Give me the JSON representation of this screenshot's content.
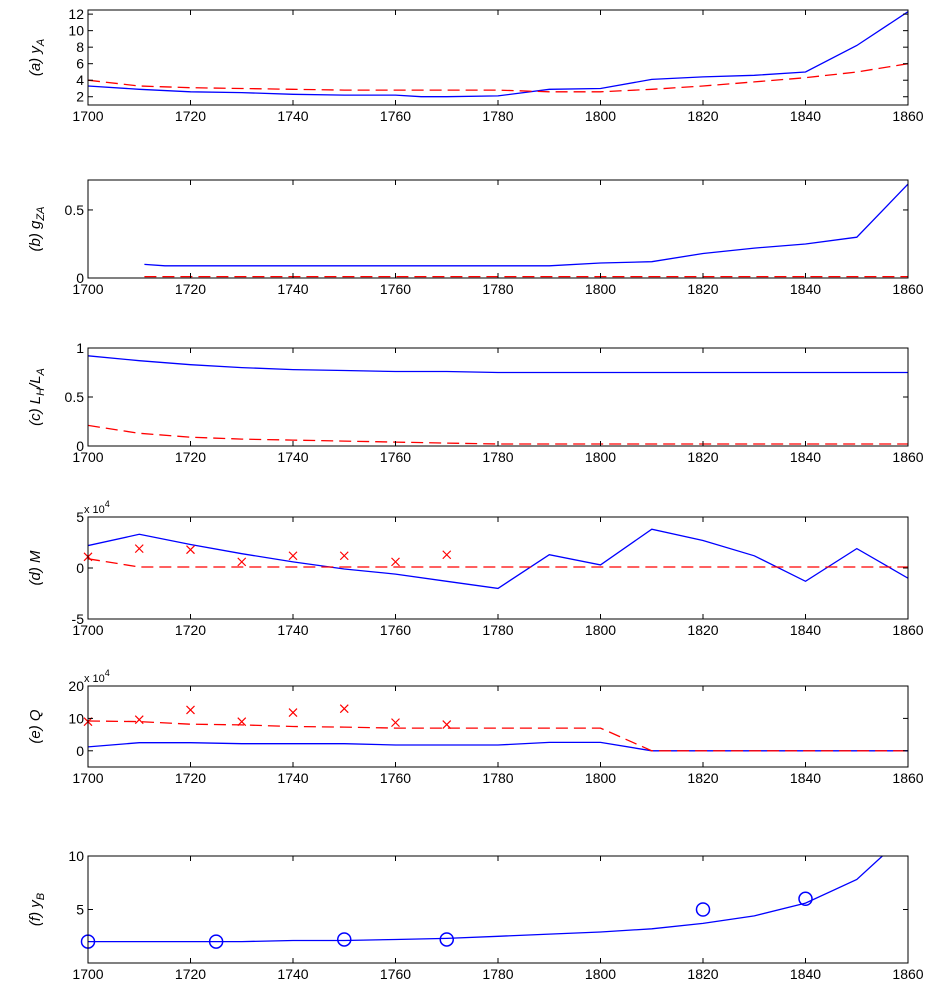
{
  "colors": {
    "model": "#0000ff",
    "alt": "#ff0000",
    "axes": "#000000"
  },
  "chart_data": [
    {
      "id": "a",
      "type": "line",
      "ylabel_prefix": "(a) ",
      "ylabel_main": "y",
      "ylabel_sub": "A",
      "xlim": [
        1700,
        1860
      ],
      "ylim": [
        1,
        12.5
      ],
      "xticks": [
        1700,
        1720,
        1740,
        1760,
        1780,
        1800,
        1820,
        1840,
        1860
      ],
      "yticks": [
        2,
        4,
        6,
        8,
        10,
        12
      ],
      "exponent": "",
      "series": [
        {
          "style": "solid-blue",
          "x": [
            1700,
            1710,
            1720,
            1730,
            1740,
            1750,
            1760,
            1765,
            1770,
            1780,
            1790,
            1800,
            1810,
            1820,
            1830,
            1840,
            1850,
            1860
          ],
          "y": [
            3.3,
            2.9,
            2.6,
            2.5,
            2.3,
            2.2,
            2.2,
            2.0,
            2.0,
            2.1,
            2.9,
            3.0,
            4.1,
            4.4,
            4.6,
            5.0,
            8.2,
            12.3
          ]
        },
        {
          "style": "dashed-red",
          "x": [
            1700,
            1710,
            1720,
            1730,
            1740,
            1750,
            1760,
            1770,
            1780,
            1790,
            1800,
            1810,
            1820,
            1830,
            1840,
            1850,
            1860
          ],
          "y": [
            4.0,
            3.3,
            3.1,
            3.0,
            2.9,
            2.8,
            2.8,
            2.8,
            2.8,
            2.6,
            2.6,
            2.9,
            3.3,
            3.8,
            4.3,
            5.0,
            6.0
          ]
        }
      ]
    },
    {
      "id": "b",
      "type": "line",
      "ylabel_prefix": "(b) ",
      "ylabel_main": "g",
      "ylabel_sub": "ZA",
      "xlim": [
        1700,
        1860
      ],
      "ylim": [
        0,
        0.72
      ],
      "xticks": [
        1700,
        1720,
        1740,
        1760,
        1780,
        1800,
        1820,
        1840,
        1860
      ],
      "yticks": [
        0,
        0.5
      ],
      "ytick_labels": [
        "0",
        "0.5"
      ],
      "exponent": "",
      "series": [
        {
          "style": "solid-blue",
          "x": [
            1711,
            1715,
            1720,
            1740,
            1760,
            1780,
            1790,
            1800,
            1810,
            1820,
            1830,
            1840,
            1850,
            1860
          ],
          "y": [
            0.1,
            0.09,
            0.09,
            0.09,
            0.09,
            0.09,
            0.09,
            0.11,
            0.12,
            0.18,
            0.22,
            0.25,
            0.3,
            0.69
          ]
        },
        {
          "style": "dashed-red",
          "x": [
            1711,
            1720,
            1740,
            1760,
            1780,
            1800,
            1820,
            1840,
            1860
          ],
          "y": [
            0.01,
            0.01,
            0.01,
            0.01,
            0.01,
            0.01,
            0.01,
            0.01,
            0.01
          ]
        }
      ]
    },
    {
      "id": "c",
      "type": "line",
      "ylabel_prefix": "(c) ",
      "ylabel_main": "L",
      "ylabel_sub": "H",
      "ylabel_main2": "/L",
      "ylabel_sub2": "A",
      "xlim": [
        1700,
        1860
      ],
      "ylim": [
        0,
        1
      ],
      "xticks": [
        1700,
        1720,
        1740,
        1760,
        1780,
        1800,
        1820,
        1840,
        1860
      ],
      "yticks": [
        0,
        0.5,
        1
      ],
      "ytick_labels": [
        "0",
        "0.5",
        "1"
      ],
      "exponent": "",
      "series": [
        {
          "style": "solid-blue",
          "x": [
            1700,
            1710,
            1720,
            1730,
            1740,
            1750,
            1760,
            1770,
            1780,
            1790,
            1800,
            1820,
            1840,
            1860
          ],
          "y": [
            0.92,
            0.87,
            0.83,
            0.8,
            0.78,
            0.77,
            0.76,
            0.76,
            0.75,
            0.75,
            0.75,
            0.75,
            0.75,
            0.75
          ]
        },
        {
          "style": "dashed-red",
          "x": [
            1700,
            1710,
            1720,
            1730,
            1740,
            1750,
            1760,
            1770,
            1780,
            1800,
            1820,
            1840,
            1860
          ],
          "y": [
            0.21,
            0.13,
            0.09,
            0.07,
            0.06,
            0.05,
            0.04,
            0.03,
            0.02,
            0.02,
            0.02,
            0.02,
            0.02
          ]
        }
      ]
    },
    {
      "id": "d",
      "type": "line",
      "ylabel_prefix": "(d) ",
      "ylabel_main": "M",
      "ylabel_sub": "",
      "xlim": [
        1700,
        1860
      ],
      "ylim": [
        -5,
        5
      ],
      "xticks": [
        1700,
        1720,
        1740,
        1760,
        1780,
        1800,
        1820,
        1840,
        1860
      ],
      "yticks": [
        -5,
        0,
        5
      ],
      "exponent": "x 10",
      "exponent_power": "4",
      "series": [
        {
          "style": "solid-blue",
          "x": [
            1700,
            1710,
            1720,
            1730,
            1740,
            1750,
            1760,
            1770,
            1780,
            1790,
            1800,
            1810,
            1820,
            1830,
            1840,
            1850,
            1860
          ],
          "y": [
            2.2,
            3.3,
            2.3,
            1.4,
            0.6,
            -0.1,
            -0.6,
            -1.3,
            -2.0,
            1.3,
            0.3,
            3.8,
            2.7,
            1.2,
            -1.3,
            1.9,
            -1.0
          ]
        },
        {
          "style": "dashed-red",
          "x": [
            1700,
            1710,
            1720,
            1740,
            1760,
            1780,
            1800,
            1820,
            1840,
            1860
          ],
          "y": [
            0.9,
            0.1,
            0.1,
            0.1,
            0.1,
            0.1,
            0.1,
            0.1,
            0.1,
            0.1
          ]
        },
        {
          "style": "cross-red",
          "x": [
            1700,
            1710,
            1720,
            1730,
            1740,
            1750,
            1760,
            1770
          ],
          "y": [
            1.1,
            1.9,
            1.8,
            0.6,
            1.2,
            1.2,
            0.6,
            1.3
          ]
        }
      ]
    },
    {
      "id": "e",
      "type": "line",
      "ylabel_prefix": "(e) ",
      "ylabel_main": "Q",
      "ylabel_sub": "",
      "xlim": [
        1700,
        1860
      ],
      "ylim": [
        -5,
        20
      ],
      "xticks": [
        1700,
        1720,
        1740,
        1760,
        1780,
        1800,
        1820,
        1840,
        1860
      ],
      "yticks": [
        0,
        10,
        20
      ],
      "exponent": "x 10",
      "exponent_power": "4",
      "series": [
        {
          "style": "solid-blue",
          "x": [
            1700,
            1710,
            1720,
            1730,
            1740,
            1750,
            1760,
            1770,
            1780,
            1790,
            1800,
            1810,
            1820,
            1840,
            1860
          ],
          "y": [
            1.2,
            2.5,
            2.5,
            2.2,
            2.2,
            2.2,
            1.8,
            1.8,
            1.8,
            2.6,
            2.6,
            0,
            0,
            0,
            0
          ]
        },
        {
          "style": "dashed-red",
          "x": [
            1700,
            1710,
            1720,
            1730,
            1740,
            1750,
            1760,
            1770,
            1780,
            1790,
            1800,
            1810,
            1820,
            1840,
            1860
          ],
          "y": [
            9.2,
            9.0,
            8.2,
            8.0,
            7.5,
            7.3,
            7.0,
            7.0,
            7.0,
            7.0,
            7.0,
            0,
            0,
            0,
            0
          ]
        },
        {
          "style": "cross-red",
          "x": [
            1700,
            1710,
            1720,
            1730,
            1740,
            1750,
            1760,
            1770
          ],
          "y": [
            9.0,
            9.6,
            12.6,
            9.0,
            11.8,
            13.0,
            8.7,
            8.1
          ]
        }
      ]
    },
    {
      "id": "f",
      "type": "line",
      "ylabel_prefix": "(f) ",
      "ylabel_main": "y",
      "ylabel_sub": "B",
      "xlim": [
        1700,
        1860
      ],
      "ylim": [
        0,
        10
      ],
      "xticks": [
        1700,
        1720,
        1740,
        1760,
        1780,
        1800,
        1820,
        1840,
        1860
      ],
      "yticks": [
        5,
        10
      ],
      "exponent": "",
      "series": [
        {
          "style": "solid-blue",
          "x": [
            1700,
            1710,
            1720,
            1730,
            1740,
            1750,
            1760,
            1770,
            1780,
            1790,
            1800,
            1810,
            1820,
            1830,
            1840,
            1850,
            1855
          ],
          "y": [
            2.0,
            2.0,
            2.0,
            2.0,
            2.1,
            2.1,
            2.2,
            2.3,
            2.5,
            2.7,
            2.9,
            3.2,
            3.7,
            4.4,
            5.6,
            7.8,
            10.0
          ]
        },
        {
          "style": "circle-blue",
          "x": [
            1700,
            1725,
            1750,
            1770,
            1820,
            1840
          ],
          "y": [
            2.0,
            2.0,
            2.2,
            2.2,
            5.0,
            6.0
          ]
        }
      ]
    }
  ]
}
